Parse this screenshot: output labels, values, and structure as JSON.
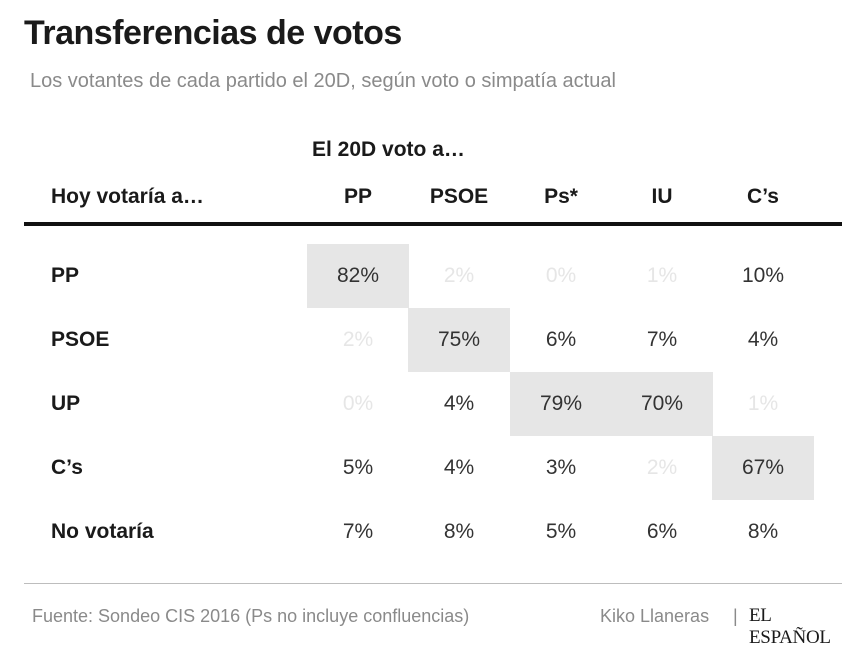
{
  "title": "Transferencias de votos",
  "subtitle": "Los votantes de cada partido el 20D, según voto o simpatía actual",
  "column_group_label": "El 20D voto a…",
  "row_header_label": "Hoy votaría a…",
  "source": "Fuente: Sondeo CIS 2016 (Ps no incluye confluencias)",
  "byline": "Kiko Llaneras",
  "separator": "|",
  "logo_text": "EL ESPAÑOL",
  "colors": {
    "highlight": "#e6e6e6",
    "faint_text": "#e6e6e6",
    "text": "#333333"
  },
  "chart_data": {
    "type": "table",
    "title": "Transferencias de votos",
    "subtitle": "Los votantes de cada partido el 20D, según voto o simpatía actual",
    "columns": [
      "PP",
      "PSOE",
      "Ps*",
      "IU",
      "C’s"
    ],
    "rows": [
      "PP",
      "PSOE",
      "UP",
      "C’s",
      "No votaría"
    ],
    "cells": [
      [
        "82%",
        "2%",
        "0%",
        "1%",
        "10%"
      ],
      [
        "2%",
        "75%",
        "6%",
        "7%",
        "4%"
      ],
      [
        "0%",
        "4%",
        "79%",
        "70%",
        "1%"
      ],
      [
        "5%",
        "4%",
        "3%",
        "2%",
        "67%"
      ],
      [
        "7%",
        "8%",
        "5%",
        "6%",
        "8%"
      ]
    ],
    "values": [
      [
        82,
        2,
        0,
        1,
        10
      ],
      [
        2,
        75,
        6,
        7,
        4
      ],
      [
        0,
        4,
        79,
        70,
        1
      ],
      [
        5,
        4,
        3,
        2,
        67
      ],
      [
        7,
        8,
        5,
        6,
        8
      ]
    ],
    "highlighted": [
      [
        0,
        0
      ],
      [
        1,
        1
      ],
      [
        2,
        2
      ],
      [
        2,
        3
      ],
      [
        3,
        4
      ]
    ],
    "faint": [
      [
        0,
        1
      ],
      [
        0,
        2
      ],
      [
        0,
        3
      ],
      [
        1,
        0
      ],
      [
        2,
        0
      ],
      [
        2,
        4
      ],
      [
        3,
        3
      ]
    ]
  }
}
